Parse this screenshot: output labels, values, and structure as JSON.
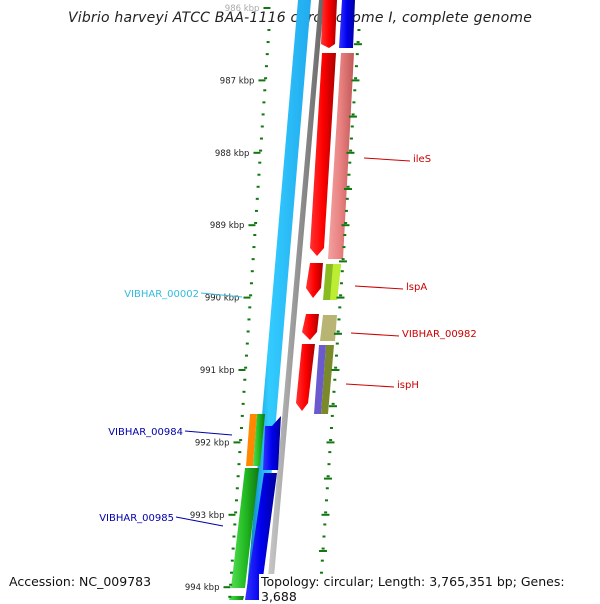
{
  "title": "Vibrio harveyi ATCC BAA-1116 chromosome I, complete genome",
  "accession": "Accession: NC_009783",
  "topology": "Topology: circular; Length: 3,765,351 bp; Genes: 3,688",
  "ruler": [
    {
      "label": "986 kbp",
      "kbp": 986
    },
    {
      "label": "987 kbp",
      "kbp": 987
    },
    {
      "label": "988 kbp",
      "kbp": 988
    },
    {
      "label": "989 kbp",
      "kbp": 989
    },
    {
      "label": "990 kbp",
      "kbp": 990
    },
    {
      "label": "991 kbp",
      "kbp": 991
    },
    {
      "label": "992 kbp",
      "kbp": 992
    },
    {
      "label": "993 kbp",
      "kbp": 993
    },
    {
      "label": "994 kbp",
      "kbp": 994
    }
  ],
  "gene_labels": [
    {
      "name": "ileS",
      "color": "#cc0000",
      "side": "right"
    },
    {
      "name": "lspA",
      "color": "#cc0000",
      "side": "right"
    },
    {
      "name": "VIBHAR_00982",
      "color": "#cc0000",
      "side": "right"
    },
    {
      "name": "ispH",
      "color": "#cc0000",
      "side": "right"
    },
    {
      "name": "VIBHAR_00002",
      "color": "#33bbdd",
      "side": "left"
    },
    {
      "name": "VIBHAR_00984",
      "color": "#0000aa",
      "side": "left"
    },
    {
      "name": "VIBHAR_00985",
      "color": "#0000aa",
      "side": "left"
    }
  ],
  "colors": {
    "forward_cds": "#ff0000",
    "forward_gene": "#ee8888",
    "reverse_cds": "#0000ee",
    "reverse_gene_green": "#22bb22",
    "backbone_blue": "#33ccff",
    "backbone_grey": "#999999",
    "tick_green": "#117711"
  }
}
